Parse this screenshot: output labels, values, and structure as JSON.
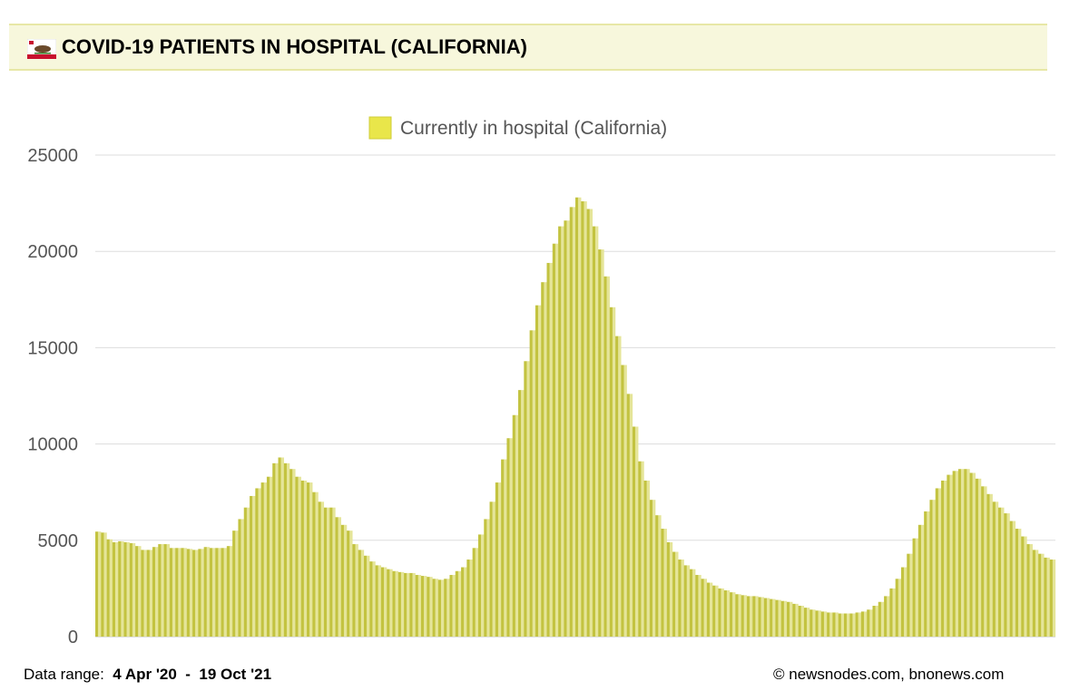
{
  "header": {
    "title": "COVID-19 PATIENTS IN HOSPITAL (CALIFORNIA)",
    "flag_icon": "california-flag-icon"
  },
  "footer": {
    "range_label": "Data range:",
    "range_start": "4 Apr '20",
    "range_separator": "-",
    "range_end": "19 Oct '21",
    "credit": "© newsnodes.com, bnonews.com"
  },
  "chart_data": {
    "type": "bar",
    "title": "",
    "xlabel": "",
    "ylabel": "",
    "ylim": [
      0,
      25000
    ],
    "yticks": [
      0,
      5000,
      10000,
      15000,
      20000,
      25000
    ],
    "grid": true,
    "legend_position": "top-center",
    "x_start": "2020-04-04",
    "x_end": "2021-10-19",
    "series": [
      {
        "name": "Currently in hospital (California)",
        "colors": [
          "#c3c340",
          "#e5e599"
        ],
        "date_step_days": 3,
        "values": [
          5450,
          5400,
          5050,
          4900,
          4950,
          4900,
          4850,
          4700,
          4500,
          4500,
          4650,
          4800,
          4800,
          4600,
          4600,
          4600,
          4550,
          4500,
          4550,
          4650,
          4600,
          4600,
          4600,
          4700,
          5500,
          6100,
          6700,
          7300,
          7700,
          8000,
          8300,
          9000,
          9300,
          9000,
          8700,
          8300,
          8100,
          8000,
          7500,
          7000,
          6700,
          6700,
          6200,
          5800,
          5500,
          4800,
          4500,
          4200,
          3900,
          3700,
          3600,
          3500,
          3400,
          3350,
          3300,
          3300,
          3200,
          3150,
          3100,
          3000,
          2950,
          3000,
          3200,
          3400,
          3600,
          4000,
          4600,
          5300,
          6100,
          7000,
          8000,
          9200,
          10300,
          11500,
          12800,
          14300,
          15900,
          17200,
          18400,
          19400,
          20400,
          21300,
          21600,
          22300,
          22800,
          22600,
          22200,
          21300,
          20100,
          18700,
          17100,
          15600,
          14100,
          12600,
          10900,
          9100,
          8100,
          7100,
          6300,
          5600,
          4900,
          4400,
          4000,
          3700,
          3500,
          3200,
          3000,
          2800,
          2650,
          2500,
          2400,
          2300,
          2200,
          2150,
          2100,
          2100,
          2050,
          2000,
          1950,
          1900,
          1850,
          1800,
          1700,
          1600,
          1500,
          1400,
          1350,
          1300,
          1250,
          1250,
          1200,
          1200,
          1200,
          1250,
          1300,
          1400,
          1600,
          1800,
          2100,
          2500,
          3000,
          3600,
          4300,
          5100,
          5800,
          6500,
          7100,
          7700,
          8100,
          8400,
          8600,
          8700,
          8700,
          8500,
          8200,
          7800,
          7400,
          7000,
          6700,
          6400,
          6000,
          5600,
          5200,
          4800,
          4500,
          4300,
          4100,
          4000
        ]
      }
    ]
  }
}
